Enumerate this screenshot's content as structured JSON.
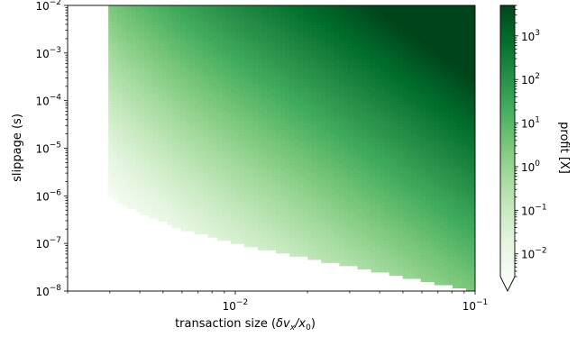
{
  "chart_data": {
    "type": "heatmap",
    "title": "",
    "xlabel": "transaction size (δvₓ/x₀)",
    "ylabel": "slippage (s)",
    "x_scale": "log",
    "y_scale": "log",
    "xlim": [
      0.002,
      0.1
    ],
    "ylim": [
      1e-08,
      0.01
    ],
    "x_ticks": [
      {
        "value": 0.01,
        "base": "10",
        "exp": "−2"
      },
      {
        "value": 0.1,
        "base": "10",
        "exp": "−1"
      }
    ],
    "y_ticks": [
      {
        "value": 1e-08,
        "base": "10",
        "exp": "−8"
      },
      {
        "value": 1e-07,
        "base": "10",
        "exp": "−7"
      },
      {
        "value": 1e-06,
        "base": "10",
        "exp": "−6"
      },
      {
        "value": 1e-05,
        "base": "10",
        "exp": "−5"
      },
      {
        "value": 0.0001,
        "base": "10",
        "exp": "−4"
      },
      {
        "value": 0.001,
        "base": "10",
        "exp": "−3"
      },
      {
        "value": 0.01,
        "base": "10",
        "exp": "−2"
      }
    ],
    "profit_region_min_x": 0.003,
    "profit_boundary": [
      {
        "x": 0.003,
        "s": 1e-06
      },
      {
        "x": 0.0035,
        "s": 6e-07
      },
      {
        "x": 0.0045,
        "s": 3.5e-07
      },
      {
        "x": 0.006,
        "s": 2e-07
      },
      {
        "x": 0.01,
        "s": 1e-07
      },
      {
        "x": 0.02,
        "s": 5e-08
      },
      {
        "x": 0.04,
        "s": 2.5e-08
      },
      {
        "x": 0.1,
        "s": 1e-08
      }
    ],
    "colorbar": {
      "label": "profit [X]",
      "scale": "log",
      "colormap": "Greens",
      "range": [
        0.003,
        5000
      ],
      "extend": "min",
      "ticks": [
        {
          "value": 0.01,
          "base": "10",
          "exp": "−2"
        },
        {
          "value": 0.1,
          "base": "10",
          "exp": "−1"
        },
        {
          "value": 1,
          "base": "10",
          "exp": "0"
        },
        {
          "value": 10,
          "base": "10",
          "exp": "1"
        },
        {
          "value": 100,
          "base": "10",
          "exp": "2"
        },
        {
          "value": 1000,
          "base": "10",
          "exp": "3"
        }
      ]
    }
  }
}
